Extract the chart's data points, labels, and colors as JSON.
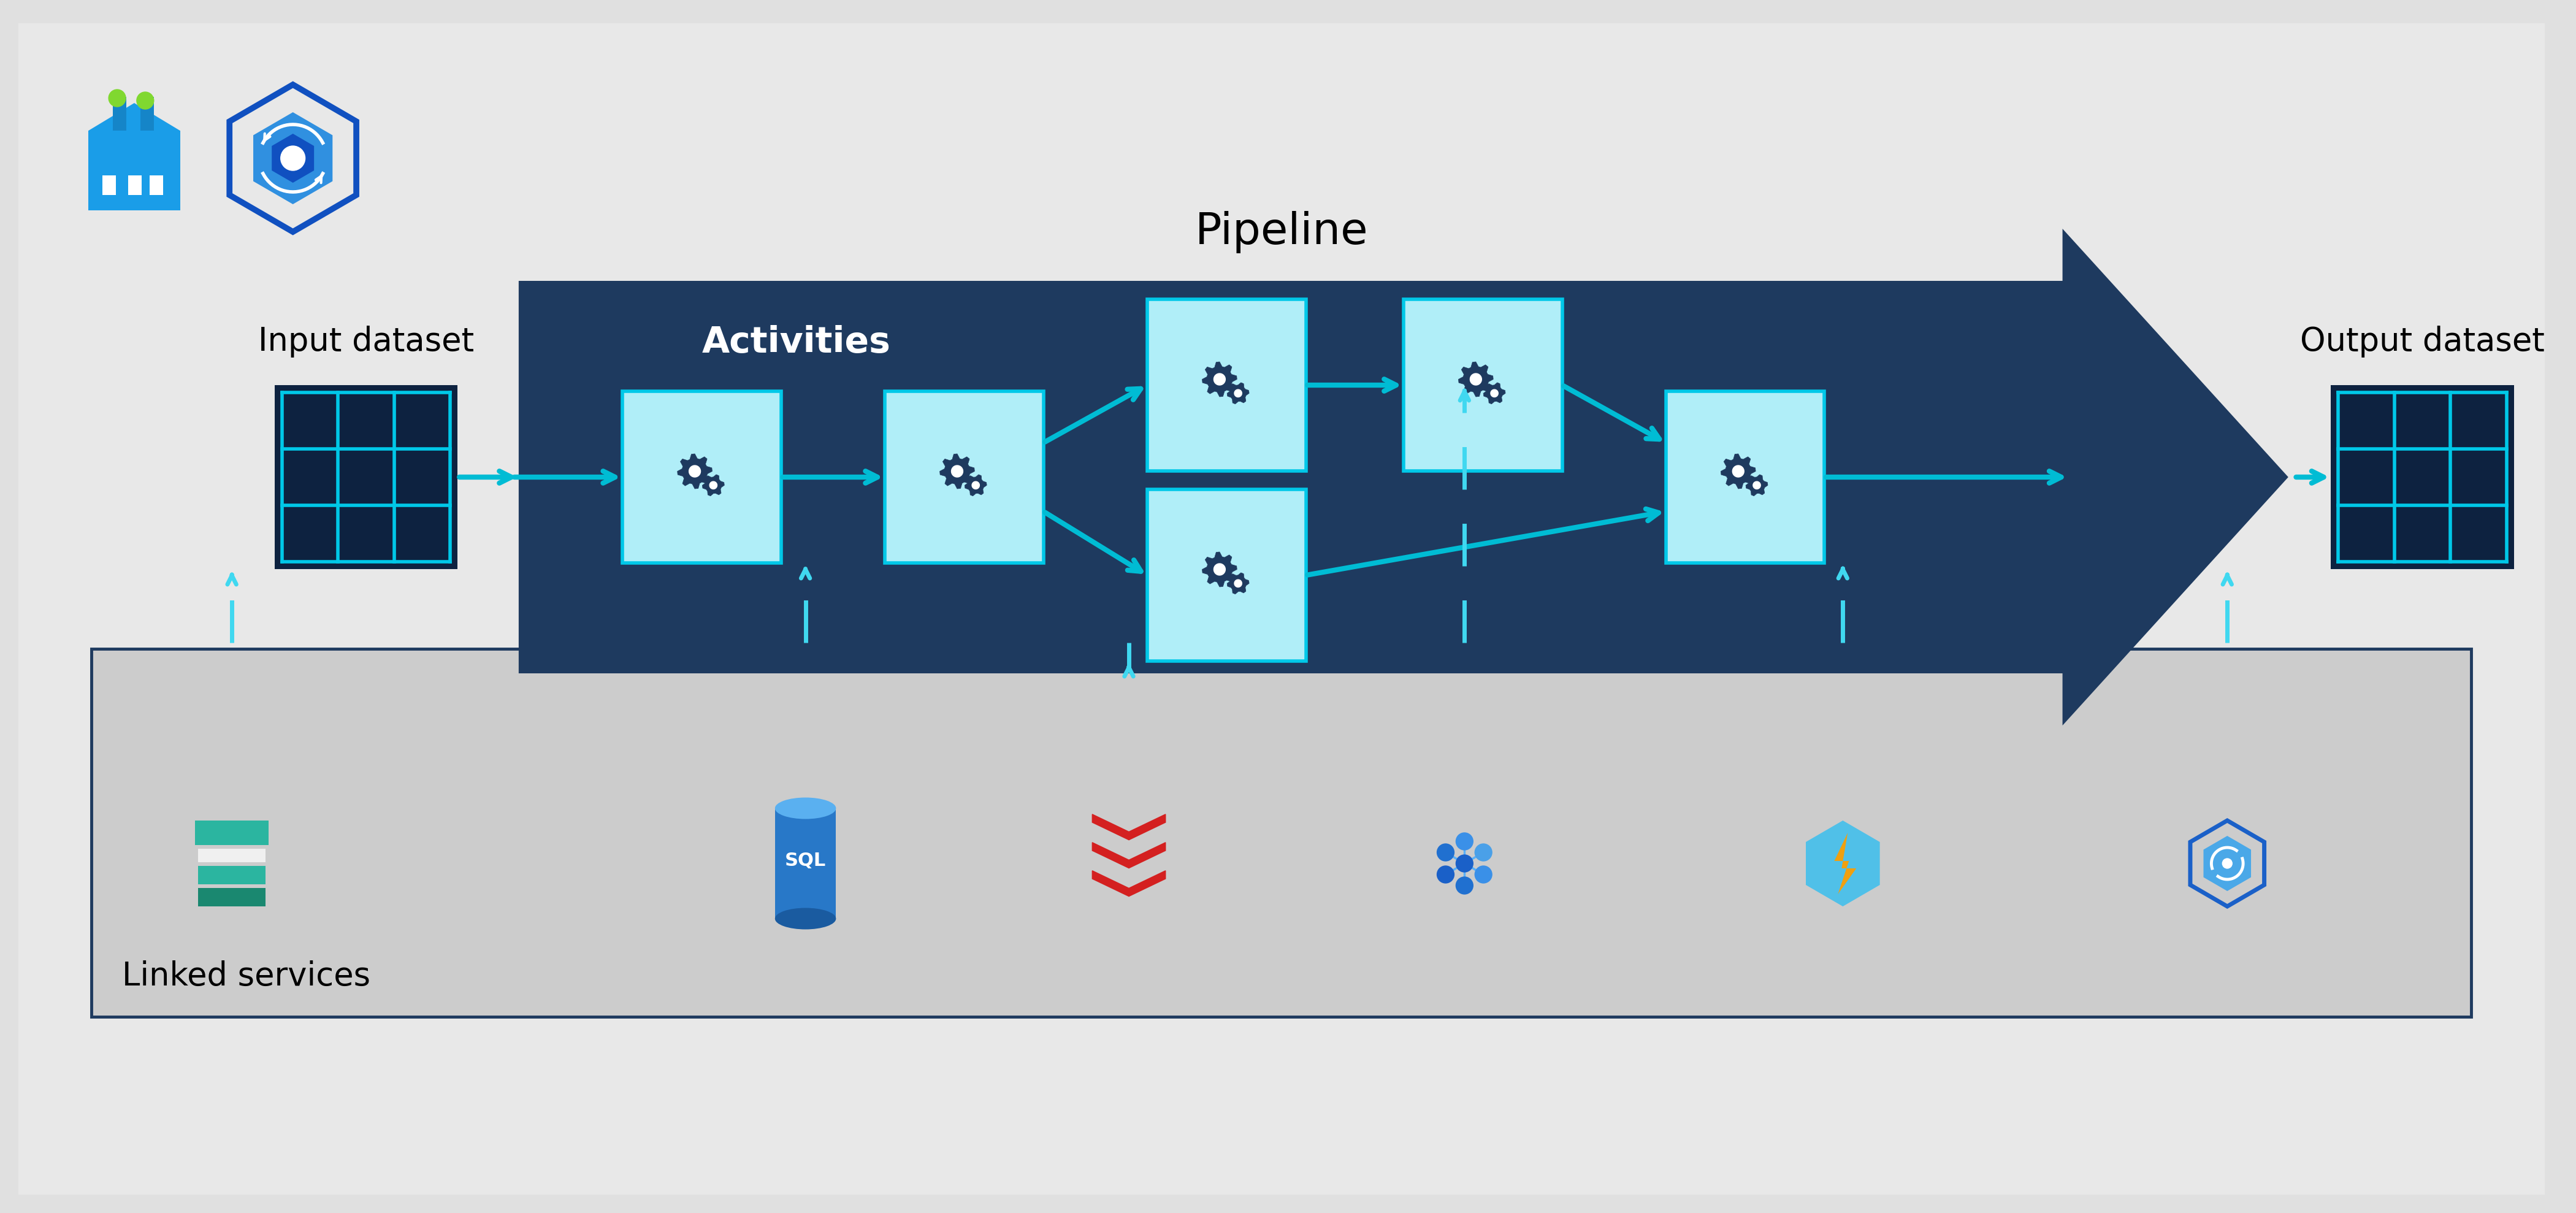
{
  "bg_outer": "#e0e0e0",
  "bg_inner": "#e8e8e8",
  "pipeline_arrow_color": "#1e3a5f",
  "gear_box_fill": "#b0eef8",
  "gear_box_stroke": "#00c8e8",
  "gear_color": "#1e3a5f",
  "arrow_color": "#00bcd4",
  "dashed_color": "#40d8f0",
  "linked_bg": "#cccccc",
  "linked_border": "#1e3a5f",
  "dataset_fill": "#0d2240",
  "dataset_line": "#00c8e8",
  "title_pipeline": "Pipeline",
  "title_input": "Input dataset",
  "title_output": "Output dataset",
  "title_linked": "Linked services",
  "title_activities": "Activities",
  "fig_w": 42.01,
  "fig_h": 19.78,
  "xlim": [
    0,
    42.01
  ],
  "ylim": [
    0,
    19.78
  ]
}
